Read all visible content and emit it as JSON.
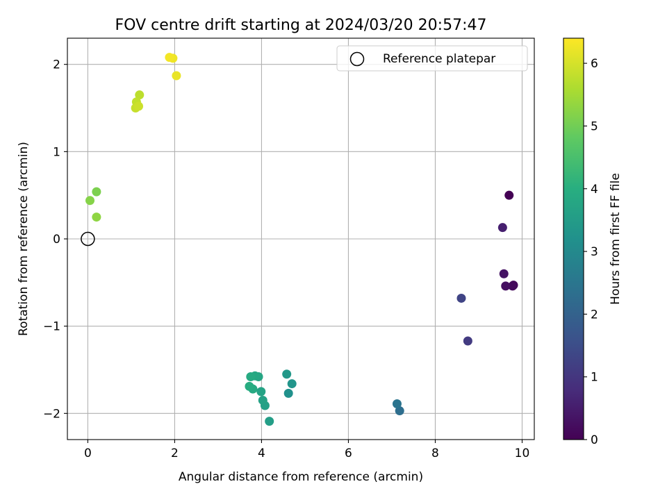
{
  "chart_data": {
    "type": "scatter",
    "title": "FOV centre drift starting at 2024/03/20 20:57:47",
    "xlabel": "Angular distance from reference (arcmin)",
    "ylabel": "Rotation from reference (arcmin)",
    "xlim": [
      -0.47,
      10.28
    ],
    "ylim": [
      -2.3,
      2.3
    ],
    "xticks": [
      0,
      2,
      4,
      6,
      8,
      10
    ],
    "yticks": [
      -2,
      -1,
      0,
      1,
      2
    ],
    "xtick_labels": [
      "0",
      "2",
      "4",
      "6",
      "8",
      "10"
    ],
    "ytick_labels": [
      "−2",
      "−1",
      "0",
      "1",
      "2"
    ],
    "grid": true,
    "colormap": "viridis",
    "colorbar": {
      "label": "Hours from first FF file",
      "range": [
        0,
        6.4
      ],
      "ticks": [
        0,
        1,
        2,
        3,
        4,
        5,
        6
      ],
      "tick_labels": [
        "0",
        "1",
        "2",
        "3",
        "4",
        "5",
        "6"
      ]
    },
    "legend": {
      "placement": "top-right",
      "entries": [
        "Reference platepar"
      ]
    },
    "reference_point": {
      "x": 0,
      "y": 0
    },
    "points": [
      {
        "x": 9.7,
        "y": 0.5,
        "hours": 0.0
      },
      {
        "x": 9.8,
        "y": -0.53,
        "hours": 0.08
      },
      {
        "x": 9.78,
        "y": -0.54,
        "hours": 0.17
      },
      {
        "x": 9.62,
        "y": -0.54,
        "hours": 0.25
      },
      {
        "x": 9.58,
        "y": -0.4,
        "hours": 0.33
      },
      {
        "x": 9.55,
        "y": 0.13,
        "hours": 0.55
      },
      {
        "x": 8.75,
        "y": -1.17,
        "hours": 1.1
      },
      {
        "x": 8.6,
        "y": -0.68,
        "hours": 1.3
      },
      {
        "x": 7.18,
        "y": -1.97,
        "hours": 2.3
      },
      {
        "x": 7.12,
        "y": -1.89,
        "hours": 2.45
      },
      {
        "x": 4.62,
        "y": -1.77,
        "hours": 3.2
      },
      {
        "x": 4.7,
        "y": -1.66,
        "hours": 3.3
      },
      {
        "x": 4.58,
        "y": -1.55,
        "hours": 3.4
      },
      {
        "x": 4.18,
        "y": -2.09,
        "hours": 3.55
      },
      {
        "x": 4.08,
        "y": -1.91,
        "hours": 3.6
      },
      {
        "x": 4.03,
        "y": -1.85,
        "hours": 3.65
      },
      {
        "x": 3.99,
        "y": -1.75,
        "hours": 3.7
      },
      {
        "x": 3.93,
        "y": -1.58,
        "hours": 3.75
      },
      {
        "x": 3.85,
        "y": -1.57,
        "hours": 3.8
      },
      {
        "x": 3.8,
        "y": -1.72,
        "hours": 3.85
      },
      {
        "x": 3.75,
        "y": -1.58,
        "hours": 3.9
      },
      {
        "x": 3.72,
        "y": -1.69,
        "hours": 3.95
      },
      {
        "x": 0.2,
        "y": 0.25,
        "hours": 5.3
      },
      {
        "x": 0.05,
        "y": 0.44,
        "hours": 5.2
      },
      {
        "x": 0.2,
        "y": 0.54,
        "hours": 5.1
      },
      {
        "x": 1.1,
        "y": 1.5,
        "hours": 5.85
      },
      {
        "x": 1.17,
        "y": 1.52,
        "hours": 5.9
      },
      {
        "x": 1.12,
        "y": 1.57,
        "hours": 5.8
      },
      {
        "x": 1.19,
        "y": 1.65,
        "hours": 5.75
      },
      {
        "x": 2.04,
        "y": 1.87,
        "hours": 6.2
      },
      {
        "x": 1.88,
        "y": 2.08,
        "hours": 6.3
      },
      {
        "x": 1.96,
        "y": 2.07,
        "hours": 6.25
      }
    ]
  }
}
